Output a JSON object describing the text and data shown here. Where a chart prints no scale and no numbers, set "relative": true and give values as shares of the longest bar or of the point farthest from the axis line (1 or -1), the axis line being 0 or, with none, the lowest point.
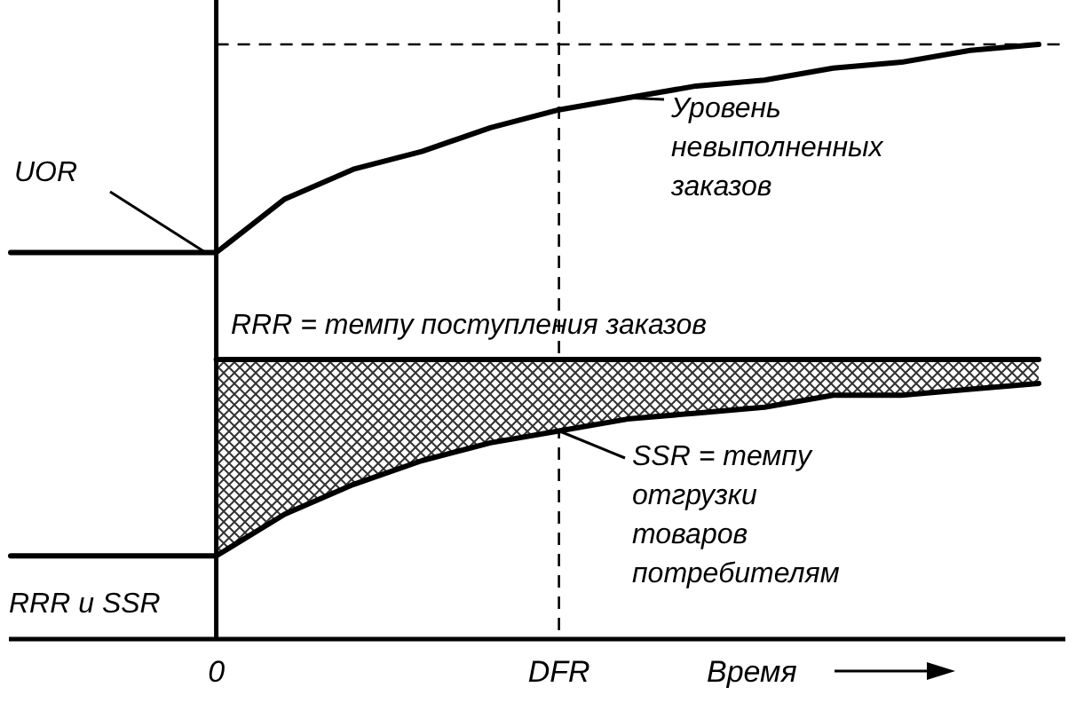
{
  "chart_data": {
    "type": "line",
    "relative": true,
    "xlabel": "Время",
    "categories": [
      null,
      null,
      null,
      "0",
      null,
      null,
      null,
      null,
      "DFR",
      null,
      null,
      null,
      null,
      null,
      null,
      null
    ],
    "series": [
      {
        "color": "#000000",
        "values": [
          0.65,
          0.65,
          0.65,
          0.65,
          0.74,
          0.79,
          0.82,
          0.86,
          0.89,
          0.91,
          0.93,
          0.94,
          0.96,
          0.97,
          0.99,
          1
        ]
      },
      {
        "color": "#000000",
        "values": [
          0.14,
          0.14,
          0.14,
          0.14,
          null,
          null,
          null,
          null,
          null,
          null,
          null,
          null,
          null,
          null,
          null,
          null
        ]
      },
      {
        "color": "#000000",
        "values": [
          null,
          null,
          null,
          0.47,
          0.47,
          0.47,
          0.47,
          0.47,
          0.47,
          0.47,
          0.47,
          0.47,
          0.47,
          0.47,
          0.47,
          0.47
        ],
        "lower": [
          null,
          null,
          null,
          0.14,
          0.21,
          0.26,
          0.3,
          0.33,
          0.35,
          0.37,
          0.38,
          0.39,
          0.41,
          0.41,
          0.42,
          0.43
        ],
        "upper": [
          null,
          null,
          null,
          0.47,
          0.47,
          0.47,
          0.47,
          0.47,
          0.47,
          0.47,
          0.47,
          0.47,
          0.47,
          0.47,
          0.47,
          0.47
        ]
      },
      {
        "color": "#000000",
        "values": [
          null,
          null,
          null,
          0.14,
          0.21,
          0.26,
          0.3,
          0.33,
          0.35,
          0.37,
          0.38,
          0.39,
          0.41,
          0.41,
          0.42,
          0.43
        ]
      }
    ],
    "ref_lines": [
      {
        "axis": "y",
        "value": 1,
        "line_style": "dashed"
      },
      {
        "axis": "x",
        "value": "DFR",
        "line_style": "dashed"
      }
    ],
    "annotations": [
      "UOR",
      "RRR и SSR",
      "RRR = темпу поступления заказов",
      "Уровень\nневыполненных\nзаказов",
      "SSR = темпу\nотгрузки\nтоваров\nпотребителям"
    ],
    "grid": false,
    "marker": "none",
    "line_style": "solid"
  }
}
